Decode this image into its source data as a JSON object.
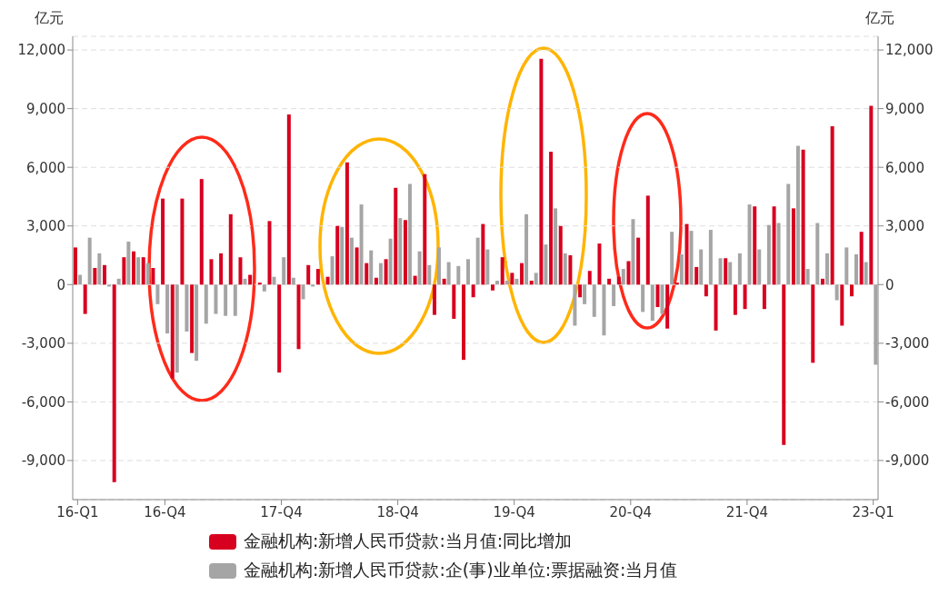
{
  "chart_data": {
    "type": "bar",
    "ylabel": "亿元",
    "y2label": "亿元",
    "categories": [
      "16-Q1",
      null,
      null,
      null,
      null,
      null,
      null,
      null,
      null,
      "16-Q4",
      null,
      null,
      null,
      null,
      null,
      null,
      null,
      null,
      null,
      null,
      null,
      "17-Q4",
      null,
      null,
      null,
      null,
      null,
      null,
      null,
      null,
      null,
      null,
      null,
      "18-Q4",
      null,
      null,
      null,
      null,
      null,
      null,
      null,
      null,
      null,
      null,
      null,
      "19-Q4",
      null,
      null,
      null,
      null,
      null,
      null,
      null,
      null,
      null,
      null,
      null,
      "20-Q4",
      null,
      null,
      null,
      null,
      null,
      null,
      null,
      null,
      null,
      null,
      null,
      "21-Q4",
      null,
      null,
      null,
      null,
      null,
      null,
      null,
      null,
      null,
      null,
      null,
      null,
      "23-Q1"
    ],
    "series": [
      {
        "name": "金融机构:新增人民币贷款:当月值:同比增加",
        "color": "#d7001f",
        "values": [
          1900,
          -1500,
          850,
          1000,
          -10100,
          1400,
          1700,
          1400,
          850,
          4400,
          -4800,
          4400,
          -3500,
          5400,
          1300,
          1600,
          3600,
          1400,
          500,
          100,
          3250,
          -4500,
          8700,
          -3300,
          1000,
          800,
          400,
          3000,
          6250,
          1900,
          1100,
          350,
          1300,
          4950,
          3300,
          450,
          5650,
          -1550,
          300,
          -1750,
          -3850,
          -650,
          3100,
          -300,
          1400,
          600,
          1100,
          200,
          11550,
          6800,
          3000,
          1500,
          -650,
          700,
          2100,
          300,
          400,
          1200,
          2400,
          4550,
          -1150,
          -2250,
          100,
          3100,
          900,
          -600,
          -2350,
          1350,
          -1550,
          -1250,
          4000,
          -1250,
          4000,
          -8200,
          3900,
          6900,
          -4000,
          300,
          8100,
          -2100,
          -600,
          2700,
          9150
        ]
      },
      {
        "name": "金融机构:新增人民币贷款:企(事)业单位:票据融资:当月值",
        "color": "#a5a5a5",
        "values": [
          500,
          2400,
          1600,
          -100,
          300,
          2200,
          1400,
          1100,
          -1000,
          -2500,
          -4500,
          -2400,
          -3900,
          -2000,
          -1500,
          -1600,
          -1600,
          300,
          null,
          -350,
          400,
          1400,
          350,
          -750,
          -100,
          0,
          1450,
          2950,
          2400,
          4100,
          1750,
          1100,
          2350,
          3400,
          5150,
          1700,
          1000,
          1900,
          1150,
          950,
          1300,
          2400,
          1800,
          200,
          200,
          300,
          3600,
          600,
          2050,
          3900,
          1600,
          -2100,
          -1000,
          -1650,
          -2600,
          -1100,
          800,
          3350,
          -1400,
          -1850,
          -1500,
          2700,
          1550,
          2750,
          1800,
          2800,
          1350,
          1150,
          1600,
          4100,
          1800,
          3050,
          3150,
          5150,
          7100,
          800,
          3150,
          1600,
          -800,
          1900,
          1550,
          1150,
          -4100
        ]
      }
    ],
    "ylim": [
      -11000,
      12700
    ],
    "yticks": [
      {
        "value": -9000,
        "label": "-9,000"
      },
      {
        "value": -6000,
        "label": "-6,000"
      },
      {
        "value": -3000,
        "label": "-3,000"
      },
      0,
      {
        "value": 3000,
        "label": "3,000"
      },
      {
        "value": 6000,
        "label": "6,000"
      },
      {
        "value": 9000,
        "label": "9,000"
      },
      {
        "value": 12000,
        "label": "12,000"
      }
    ],
    "y2lim": [
      -11000,
      12700
    ],
    "y2ticks": [
      {
        "value": -9000,
        "label": "-9,000"
      },
      {
        "value": -6000,
        "label": "-6,000"
      },
      {
        "value": -3000,
        "label": "-3,000"
      },
      0,
      {
        "value": 3000,
        "label": "3,000"
      },
      {
        "value": 6000,
        "label": "6,000"
      },
      {
        "value": 9000,
        "label": "9,000"
      },
      {
        "value": 12000,
        "label": "12,000"
      }
    ],
    "grid": "y",
    "legend": "bottom"
  }
}
